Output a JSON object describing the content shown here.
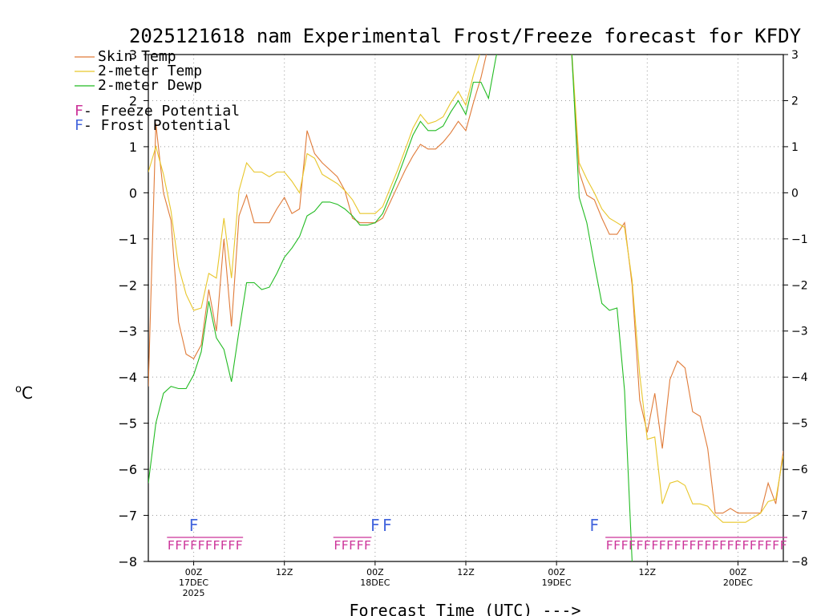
{
  "chart_data": {
    "type": "line",
    "title": "2025121618 nam Experimental Frost/Freeze forecast for KFDY",
    "xlabel": "Forecast Time (UTC) --->",
    "ylabel": "oC",
    "ylabel_super": "o",
    "ylabel_unit": "C",
    "ylim": [
      -8,
      3
    ],
    "xlim": [
      -4,
      80
    ],
    "grid": true,
    "y_ticks": [
      -8,
      -7,
      -6,
      -5,
      -4,
      -3,
      -2,
      -1,
      0,
      1,
      2,
      3
    ],
    "x_ticks": [
      {
        "hour": 2,
        "line1": "00Z",
        "line2": "17DEC",
        "line3": "2025"
      },
      {
        "hour": 14,
        "line1": "12Z",
        "line2": "",
        "line3": ""
      },
      {
        "hour": 26,
        "line1": "00Z",
        "line2": "18DEC",
        "line3": ""
      },
      {
        "hour": 38,
        "line1": "12Z",
        "line2": "",
        "line3": ""
      },
      {
        "hour": 50,
        "line1": "00Z",
        "line2": "19DEC",
        "line3": ""
      },
      {
        "hour": 62,
        "line1": "12Z",
        "line2": "",
        "line3": ""
      },
      {
        "hour": 74,
        "line1": "00Z",
        "line2": "20DEC",
        "line3": ""
      }
    ],
    "x_hours": [
      -4,
      -3,
      -2,
      -1,
      0,
      1,
      2,
      3,
      4,
      5,
      6,
      7,
      8,
      9,
      10,
      11,
      12,
      13,
      14,
      15,
      16,
      17,
      18,
      19,
      20,
      21,
      22,
      23,
      24,
      25,
      26,
      27,
      28,
      29,
      30,
      31,
      32,
      33,
      34,
      35,
      36,
      37,
      38,
      39,
      40,
      41,
      42,
      43,
      44,
      45,
      46,
      47,
      48,
      49,
      50,
      51,
      52,
      53,
      54,
      55,
      56,
      57,
      58,
      59,
      60,
      61,
      62,
      63,
      64,
      65,
      66,
      67,
      68,
      69,
      70,
      71,
      72,
      73,
      74,
      75,
      76,
      77,
      78,
      79,
      80
    ],
    "series": [
      {
        "name": "Skin Temp",
        "color": "#e07b39",
        "values": [
          -4.2,
          1.5,
          0.0,
          -0.6,
          -2.8,
          -3.5,
          -3.6,
          -3.3,
          -2.1,
          -3.0,
          -1.0,
          -2.9,
          -0.5,
          -0.05,
          -0.65,
          -0.65,
          -0.65,
          -0.35,
          -0.1,
          -0.45,
          -0.35,
          1.35,
          0.85,
          0.65,
          0.5,
          0.35,
          0.05,
          -0.55,
          -0.65,
          -0.65,
          -0.65,
          -0.55,
          -0.2,
          0.15,
          0.5,
          0.8,
          1.05,
          0.95,
          0.95,
          1.1,
          1.3,
          1.55,
          1.35,
          1.95,
          2.5,
          3.2,
          3.5,
          3.5,
          3.5,
          3.5,
          3.5,
          3.5,
          3.5,
          3.5,
          3.5,
          3.5,
          3.0,
          0.45,
          -0.05,
          -0.15,
          -0.55,
          -0.9,
          -0.9,
          -0.65,
          -2.0,
          -4.5,
          -5.2,
          -4.35,
          -5.55,
          -4.05,
          -3.65,
          -3.8,
          -4.75,
          -4.85,
          -5.55,
          -6.95,
          -6.95,
          -6.85,
          -6.95,
          -6.95,
          -6.95,
          -6.95,
          -6.3,
          -6.75,
          -5.6
        ]
      },
      {
        "name": "2-meter Temp",
        "color": "#e8c62a",
        "values": [
          0.45,
          1.0,
          0.4,
          -0.4,
          -1.6,
          -2.2,
          -2.55,
          -2.5,
          -1.75,
          -1.85,
          -0.55,
          -1.85,
          0.05,
          0.65,
          0.45,
          0.45,
          0.35,
          0.45,
          0.45,
          0.25,
          0.0,
          0.85,
          0.75,
          0.4,
          0.3,
          0.2,
          0.05,
          -0.15,
          -0.45,
          -0.45,
          -0.45,
          -0.3,
          0.1,
          0.5,
          0.95,
          1.4,
          1.7,
          1.5,
          1.55,
          1.65,
          1.95,
          2.2,
          1.9,
          2.55,
          3.1,
          3.5,
          3.5,
          3.5,
          3.5,
          3.5,
          3.5,
          3.5,
          3.5,
          3.5,
          3.5,
          3.5,
          3.1,
          0.65,
          0.3,
          0.0,
          -0.35,
          -0.55,
          -0.65,
          -0.75,
          -1.9,
          -3.95,
          -5.35,
          -5.3,
          -6.75,
          -6.3,
          -6.25,
          -6.35,
          -6.75,
          -6.75,
          -6.8,
          -7.0,
          -7.15,
          -7.15,
          -7.15,
          -7.15,
          -7.05,
          -6.95,
          -6.7,
          -6.65,
          -5.7
        ]
      },
      {
        "name": "2-meter Dewp",
        "color": "#22bb22",
        "values": [
          -6.3,
          -5.0,
          -4.35,
          -4.2,
          -4.25,
          -4.25,
          -3.95,
          -3.45,
          -2.35,
          -3.15,
          -3.4,
          -4.1,
          -3.0,
          -1.95,
          -1.95,
          -2.1,
          -2.05,
          -1.75,
          -1.4,
          -1.2,
          -0.95,
          -0.5,
          -0.4,
          -0.2,
          -0.2,
          -0.25,
          -0.35,
          -0.5,
          -0.7,
          -0.7,
          -0.65,
          -0.45,
          -0.05,
          0.35,
          0.8,
          1.25,
          1.55,
          1.35,
          1.35,
          1.45,
          1.75,
          2.0,
          1.7,
          2.4,
          2.4,
          2.05,
          2.95,
          3.5,
          3.5,
          3.5,
          3.5,
          3.5,
          3.5,
          3.5,
          3.5,
          3.5,
          3.1,
          -0.1,
          -0.65,
          -1.55,
          -2.4,
          -2.55,
          -2.5,
          -4.3,
          -8.0
        ]
      }
    ],
    "legend": [
      {
        "label": "Skin Temp",
        "color": "#e07b39"
      },
      {
        "label": "2-meter Temp",
        "color": "#e8c62a"
      },
      {
        "label": "2-meter Dewp",
        "color": "#22bb22"
      }
    ],
    "potential_legend": [
      {
        "letter": "F",
        "text": " - Freeze Potential",
        "color": "#cc3399"
      },
      {
        "letter": "F",
        "text": " - Frost Potential",
        "color": "#4466dd"
      }
    ],
    "freeze_marks": {
      "color": "#cc3399",
      "y": -7.6,
      "hours": [
        -1,
        0,
        1,
        2,
        3,
        4,
        5,
        6,
        7,
        8,
        21,
        22,
        23,
        24,
        25,
        57,
        58,
        59,
        60,
        61,
        62,
        63,
        64,
        65,
        66,
        67,
        68,
        69,
        70,
        71,
        72,
        73,
        74,
        75,
        76,
        77,
        78,
        79,
        80
      ]
    },
    "frost_marks": {
      "color": "#4466dd",
      "y": -7.2,
      "hours": [
        2,
        26,
        27.6,
        55
      ]
    }
  }
}
